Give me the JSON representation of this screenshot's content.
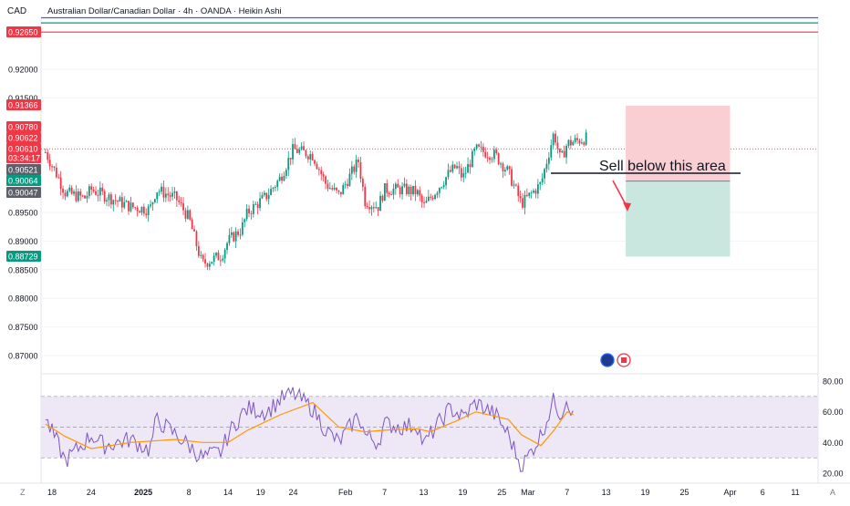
{
  "header": {
    "currency": "CAD",
    "title": "Australian Dollar/Canadian Dollar · 4h · OANDA · Heikin Ashi"
  },
  "price_axis": {
    "ticks": [
      "0.92000",
      "0.91500",
      "0.89500",
      "0.89000",
      "0.88500",
      "0.88000",
      "0.87500",
      "0.87000"
    ],
    "badges": [
      {
        "label": "0.92650",
        "color": "#f23645"
      },
      {
        "label": "0.91366",
        "color": "#f23645"
      },
      {
        "label": "0.90780",
        "color": "#f23645"
      },
      {
        "label": "0.90622",
        "color": "#f23645"
      },
      {
        "label": "0.90610",
        "color": "#f23645"
      },
      {
        "label": "03:34:17",
        "color": "#f23645"
      },
      {
        "label": "0.90521",
        "color": "#5d606b"
      },
      {
        "label": "0.90064",
        "color": "#089981"
      },
      {
        "label": "0.90047",
        "color": "#5d606b"
      },
      {
        "label": "0.88729",
        "color": "#089981"
      }
    ]
  },
  "rsi_axis": {
    "ticks": [
      "80.00",
      "60.00",
      "40.00",
      "20.00"
    ]
  },
  "time_axis": {
    "labels": [
      "18",
      "24",
      "2025",
      "8",
      "14",
      "19",
      "24",
      "Feb",
      "7",
      "13",
      "19",
      "25",
      "Mar",
      "7",
      "13",
      "19",
      "25",
      "Apr",
      "6",
      "11"
    ],
    "corner_left": "Z",
    "corner_right": "A"
  },
  "annotation": {
    "text": "Sell below this area"
  },
  "colors": {
    "bull": "#089981",
    "bear": "#f23645",
    "stop_zone": "#f9cfd3",
    "target_zone": "#c9e7df",
    "rsi_line": "#7e57c2",
    "rsi_ma": "#ff9800",
    "rsi_band": "#ede7f6",
    "hline_blue": "#2962ff",
    "hline_green": "#089981",
    "hline_red": "#f23645"
  },
  "chart_data": [
    {
      "type": "candlestick",
      "title": "Australian Dollar/Canadian Dollar · 4h · OANDA · Heikin Ashi",
      "y_range": [
        0.8675,
        0.929
      ],
      "x_range": [
        "2024-12-18",
        "2025-04-12"
      ],
      "grid": true,
      "last_price": 0.9061,
      "horizontal_lines": [
        0.929,
        0.9281,
        0.9265
      ],
      "series_points": [
        [
          "2024-12-17",
          0.9055
        ],
        [
          "2024-12-19",
          0.901
        ],
        [
          "2024-12-20",
          0.8985
        ],
        [
          "2024-12-23",
          0.8975
        ],
        [
          "2024-12-24",
          0.899
        ],
        [
          "2024-12-26",
          0.898
        ],
        [
          "2024-12-30",
          0.896
        ],
        [
          "2025-01-02",
          0.8955
        ],
        [
          "2025-01-03",
          0.899
        ],
        [
          "2025-01-06",
          0.8975
        ],
        [
          "2025-01-08",
          0.894
        ],
        [
          "2025-01-10",
          0.886
        ],
        [
          "2025-01-13",
          0.8875
        ],
        [
          "2025-01-14",
          0.89
        ],
        [
          "2025-01-16",
          0.892
        ],
        [
          "2025-01-17",
          0.895
        ],
        [
          "2025-01-20",
          0.898
        ],
        [
          "2025-01-22",
          0.901
        ],
        [
          "2025-01-24",
          0.906
        ],
        [
          "2025-01-27",
          0.905
        ],
        [
          "2025-01-29",
          0.9
        ],
        [
          "2025-01-31",
          0.898
        ],
        [
          "2025-02-03",
          0.904
        ],
        [
          "2025-02-04",
          0.897
        ],
        [
          "2025-02-06",
          0.896
        ],
        [
          "2025-02-07",
          0.899
        ],
        [
          "2025-02-10",
          0.899
        ],
        [
          "2025-02-12",
          0.8985
        ],
        [
          "2025-02-13",
          0.896
        ],
        [
          "2025-02-14",
          0.8975
        ],
        [
          "2025-02-17",
          0.902
        ],
        [
          "2025-02-18",
          0.903
        ],
        [
          "2025-02-19",
          0.901
        ],
        [
          "2025-02-21",
          0.906
        ],
        [
          "2025-02-24",
          0.905
        ],
        [
          "2025-02-26",
          0.902
        ],
        [
          "2025-02-28",
          0.8965
        ],
        [
          "2025-03-03",
          0.9
        ],
        [
          "2025-03-05",
          0.909
        ],
        [
          "2025-03-06",
          0.904
        ],
        [
          "2025-03-07",
          0.907
        ],
        [
          "2025-03-10",
          0.908
        ]
      ]
    },
    {
      "type": "line",
      "title": "",
      "y_range": [
        20,
        80
      ],
      "bands": [
        30,
        50,
        70
      ],
      "series": [
        {
          "name": "",
          "points": [
            [
              "2024-12-17",
              55
            ],
            [
              "2024-12-19",
              38
            ],
            [
              "2024-12-20",
              28
            ],
            [
              "2024-12-23",
              40
            ],
            [
              "2024-12-24",
              45
            ],
            [
              "2024-12-26",
              38
            ],
            [
              "2024-12-30",
              42
            ],
            [
              "2025-01-02",
              35
            ],
            [
              "2025-01-03",
              55
            ],
            [
              "2025-01-06",
              45
            ],
            [
              "2025-01-08",
              38
            ],
            [
              "2025-01-10",
              30
            ],
            [
              "2025-01-13",
              34
            ],
            [
              "2025-01-14",
              45
            ],
            [
              "2025-01-16",
              58
            ],
            [
              "2025-01-17",
              62
            ],
            [
              "2025-01-20",
              60
            ],
            [
              "2025-01-22",
              68
            ],
            [
              "2025-01-24",
              72
            ],
            [
              "2025-01-27",
              62
            ],
            [
              "2025-01-29",
              48
            ],
            [
              "2025-01-31",
              40
            ],
            [
              "2025-02-03",
              58
            ],
            [
              "2025-02-04",
              45
            ],
            [
              "2025-02-06",
              40
            ],
            [
              "2025-02-07",
              52
            ],
            [
              "2025-02-10",
              50
            ],
            [
              "2025-02-12",
              52
            ],
            [
              "2025-02-13",
              38
            ],
            [
              "2025-02-14",
              45
            ],
            [
              "2025-02-17",
              62
            ],
            [
              "2025-02-18",
              60
            ],
            [
              "2025-02-19",
              56
            ],
            [
              "2025-02-21",
              66
            ],
            [
              "2025-02-24",
              58
            ],
            [
              "2025-02-26",
              45
            ],
            [
              "2025-02-28",
              24
            ],
            [
              "2025-03-03",
              45
            ],
            [
              "2025-03-05",
              68
            ],
            [
              "2025-03-06",
              58
            ],
            [
              "2025-03-07",
              70
            ],
            [
              "2025-03-08",
              55
            ]
          ]
        },
        {
          "name": "",
          "points": [
            [
              "2024-12-17",
              52
            ],
            [
              "2024-12-20",
              44
            ],
            [
              "2024-12-24",
              36
            ],
            [
              "2024-12-30",
              40
            ],
            [
              "2025-01-06",
              42
            ],
            [
              "2025-01-10",
              40
            ],
            [
              "2025-01-14",
              40
            ],
            [
              "2025-01-17",
              48
            ],
            [
              "2025-01-22",
              58
            ],
            [
              "2025-01-27",
              66
            ],
            [
              "2025-01-31",
              50
            ],
            [
              "2025-02-04",
              47
            ],
            [
              "2025-02-07",
              48
            ],
            [
              "2025-02-12",
              49
            ],
            [
              "2025-02-14",
              47
            ],
            [
              "2025-02-18",
              54
            ],
            [
              "2025-02-21",
              60
            ],
            [
              "2025-02-26",
              55
            ],
            [
              "2025-02-28",
              45
            ],
            [
              "2025-03-03",
              38
            ],
            [
              "2025-03-05",
              48
            ],
            [
              "2025-03-07",
              60
            ],
            [
              "2025-03-08",
              58
            ]
          ]
        }
      ]
    }
  ],
  "trade_setup": {
    "entry": 0.90047,
    "stop": 0.91366,
    "target": 0.88729,
    "start": "2025-03-16",
    "end": "2025-04-01"
  }
}
